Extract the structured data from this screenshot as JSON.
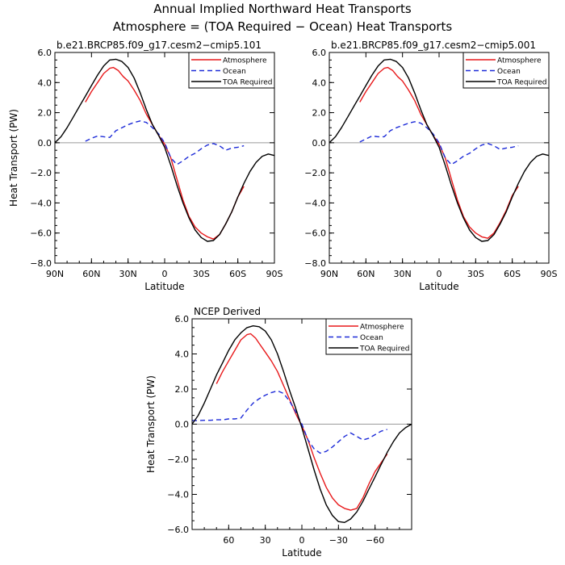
{
  "figure": {
    "title_line1": "Annual Implied Northward Heat Transports",
    "title_line2": "Atmosphere = (TOA Required − Ocean) Heat Transports"
  },
  "legend_entries": [
    "Atmosphere",
    "Ocean",
    "TOA Required"
  ],
  "colors": {
    "atmosphere": "#e8191b",
    "ocean": "#1d2bd8",
    "toa": "#000000",
    "zero_line": "#9a9a9a"
  },
  "chart_data": [
    {
      "type": "line",
      "title": "b.e21.BRCP85.f09_g17.cesm2−cmip5.101",
      "xlabel": "Latitude",
      "ylabel": "Heat Transport (PW)",
      "xlim": [
        90,
        -90
      ],
      "ylim": [
        -8,
        6
      ],
      "xticks": [
        90,
        60,
        30,
        0,
        -30,
        -60,
        -90
      ],
      "xtick_labels": [
        "90N",
        "60N",
        "30N",
        "0",
        "30S",
        "60S",
        "90S"
      ],
      "yticks": [
        6,
        4,
        2,
        0,
        -2,
        -4,
        -6,
        -8
      ],
      "ytick_labels": [
        "6.0",
        "4.0",
        "2.0",
        "0.0",
        "−2.0",
        "−4.0",
        "−6.0",
        "−8.0"
      ],
      "series": [
        {
          "name": "Atmosphere",
          "x": [
            65,
            60,
            55,
            50,
            45,
            42,
            38,
            34,
            30,
            25,
            20,
            15,
            10,
            5,
            0,
            -5,
            -10,
            -15,
            -20,
            -25,
            -30,
            -35,
            -40,
            -45,
            -50,
            -55,
            -60,
            -65
          ],
          "y": [
            2.7,
            3.4,
            4.0,
            4.6,
            4.95,
            5.0,
            4.8,
            4.4,
            4.1,
            3.5,
            2.8,
            1.9,
            1.2,
            0.5,
            -0.1,
            -1.0,
            -2.4,
            -3.8,
            -4.9,
            -5.6,
            -6.0,
            -6.25,
            -6.4,
            -6.1,
            -5.4,
            -4.6,
            -3.6,
            -2.9
          ]
        },
        {
          "name": "Ocean",
          "x": [
            65,
            60,
            55,
            50,
            45,
            40,
            35,
            30,
            25,
            20,
            15,
            10,
            5,
            0,
            -5,
            -10,
            -15,
            -20,
            -25,
            -30,
            -35,
            -40,
            -45,
            -50,
            -55,
            -60,
            -65
          ],
          "y": [
            0.1,
            0.3,
            0.45,
            0.4,
            0.35,
            0.8,
            1.0,
            1.2,
            1.35,
            1.45,
            1.35,
            1.0,
            0.6,
            0.0,
            -1.0,
            -1.45,
            -1.2,
            -0.9,
            -0.7,
            -0.4,
            -0.15,
            -0.05,
            -0.2,
            -0.5,
            -0.35,
            -0.3,
            -0.2
          ]
        },
        {
          "name": "TOA Required",
          "x": [
            90,
            85,
            80,
            75,
            70,
            65,
            60,
            55,
            50,
            45,
            40,
            35,
            30,
            25,
            20,
            15,
            10,
            5,
            0,
            -5,
            -10,
            -15,
            -20,
            -25,
            -30,
            -35,
            -40,
            -45,
            -50,
            -55,
            -60,
            -65,
            -70,
            -75,
            -80,
            -85,
            -90
          ],
          "y": [
            0.0,
            0.4,
            1.0,
            1.7,
            2.4,
            3.1,
            3.8,
            4.5,
            5.1,
            5.5,
            5.55,
            5.4,
            5.0,
            4.3,
            3.3,
            2.2,
            1.2,
            0.5,
            -0.3,
            -1.5,
            -2.8,
            -4.0,
            -5.0,
            -5.8,
            -6.3,
            -6.55,
            -6.5,
            -6.1,
            -5.4,
            -4.6,
            -3.6,
            -2.7,
            -1.9,
            -1.3,
            -0.9,
            -0.75,
            -0.85
          ]
        }
      ]
    },
    {
      "type": "line",
      "title": "b.e21.BRCP85.f09_g17.cesm2−cmip5.001",
      "xlabel": "Latitude",
      "ylabel": "",
      "xlim": [
        90,
        -90
      ],
      "ylim": [
        -8,
        6
      ],
      "xticks": [
        90,
        60,
        30,
        0,
        -30,
        -60,
        -90
      ],
      "xtick_labels": [
        "90N",
        "60N",
        "30N",
        "0",
        "30S",
        "60S",
        "90S"
      ],
      "yticks": [
        6,
        4,
        2,
        0,
        -2,
        -4,
        -6,
        -8
      ],
      "ytick_labels": [
        "6.0",
        "4.0",
        "2.0",
        "0.0",
        "−2.0",
        "−4.0",
        "−6.0",
        "−8.0"
      ],
      "series": [
        {
          "name": "Atmosphere",
          "x": [
            65,
            60,
            55,
            50,
            45,
            42,
            38,
            34,
            30,
            25,
            20,
            15,
            10,
            5,
            0,
            -5,
            -10,
            -15,
            -20,
            -25,
            -30,
            -35,
            -40,
            -45,
            -50,
            -55,
            -60,
            -65
          ],
          "y": [
            2.7,
            3.4,
            4.0,
            4.6,
            4.95,
            5.0,
            4.8,
            4.4,
            4.1,
            3.5,
            2.8,
            1.9,
            1.2,
            0.5,
            -0.1,
            -1.0,
            -2.4,
            -3.8,
            -4.9,
            -5.6,
            -6.0,
            -6.25,
            -6.35,
            -6.0,
            -5.3,
            -4.5,
            -3.5,
            -2.9
          ]
        },
        {
          "name": "Ocean",
          "x": [
            65,
            60,
            55,
            50,
            45,
            40,
            35,
            30,
            25,
            20,
            15,
            10,
            5,
            0,
            -5,
            -10,
            -15,
            -20,
            -25,
            -30,
            -35,
            -40,
            -45,
            -50,
            -55,
            -60,
            -65
          ],
          "y": [
            0.05,
            0.25,
            0.45,
            0.4,
            0.4,
            0.8,
            1.0,
            1.15,
            1.3,
            1.4,
            1.3,
            1.0,
            0.6,
            0.0,
            -1.0,
            -1.45,
            -1.2,
            -0.9,
            -0.7,
            -0.4,
            -0.15,
            -0.05,
            -0.2,
            -0.45,
            -0.35,
            -0.3,
            -0.2
          ]
        },
        {
          "name": "TOA Required",
          "x": [
            90,
            85,
            80,
            75,
            70,
            65,
            60,
            55,
            50,
            45,
            40,
            35,
            30,
            25,
            20,
            15,
            10,
            5,
            0,
            -5,
            -10,
            -15,
            -20,
            -25,
            -30,
            -35,
            -40,
            -45,
            -50,
            -55,
            -60,
            -65,
            -70,
            -75,
            -80,
            -85,
            -90
          ],
          "y": [
            0.0,
            0.4,
            1.0,
            1.7,
            2.4,
            3.1,
            3.8,
            4.5,
            5.1,
            5.5,
            5.55,
            5.4,
            5.0,
            4.3,
            3.3,
            2.2,
            1.2,
            0.5,
            -0.3,
            -1.5,
            -2.8,
            -4.0,
            -5.0,
            -5.8,
            -6.3,
            -6.55,
            -6.5,
            -6.1,
            -5.4,
            -4.6,
            -3.6,
            -2.7,
            -1.9,
            -1.3,
            -0.9,
            -0.75,
            -0.85
          ]
        }
      ]
    },
    {
      "type": "line",
      "title": "NCEP Derived",
      "xlabel": "Latitude",
      "ylabel": "Heat Transport (PW)",
      "xlim": [
        90,
        -90
      ],
      "ylim": [
        -6,
        6
      ],
      "xticks": [
        60,
        30,
        0,
        -30,
        -60
      ],
      "xtick_labels": [
        "60",
        "30",
        "0",
        "−30",
        "−60"
      ],
      "yticks": [
        6,
        4,
        2,
        0,
        -2,
        -4,
        -6
      ],
      "ytick_labels": [
        "6.0",
        "4.0",
        "2.0",
        "0.0",
        "−2.0",
        "−4.0",
        "−6.0"
      ],
      "series": [
        {
          "name": "Atmosphere",
          "x": [
            70,
            65,
            60,
            55,
            50,
            45,
            42,
            38,
            34,
            30,
            25,
            20,
            15,
            10,
            5,
            0,
            -5,
            -10,
            -15,
            -20,
            -25,
            -30,
            -35,
            -40,
            -45,
            -50,
            -55,
            -60,
            -65,
            -70
          ],
          "y": [
            2.3,
            3.0,
            3.6,
            4.2,
            4.8,
            5.1,
            5.15,
            4.9,
            4.5,
            4.1,
            3.6,
            3.0,
            2.2,
            1.4,
            0.6,
            -0.1,
            -0.9,
            -1.9,
            -2.8,
            -3.6,
            -4.2,
            -4.6,
            -4.8,
            -4.9,
            -4.8,
            -4.2,
            -3.4,
            -2.7,
            -2.2,
            -1.7
          ]
        },
        {
          "name": "Ocean",
          "x": [
            90,
            85,
            80,
            75,
            70,
            65,
            60,
            55,
            50,
            45,
            40,
            35,
            30,
            25,
            20,
            15,
            10,
            5,
            0,
            -5,
            -10,
            -15,
            -20,
            -25,
            -30,
            -35,
            -40,
            -45,
            -50,
            -55,
            -60,
            -65,
            -70
          ],
          "y": [
            0.2,
            0.2,
            0.22,
            0.22,
            0.25,
            0.25,
            0.3,
            0.3,
            0.35,
            0.8,
            1.2,
            1.45,
            1.65,
            1.8,
            1.9,
            1.75,
            1.3,
            0.7,
            0.0,
            -0.9,
            -1.4,
            -1.65,
            -1.55,
            -1.3,
            -1.0,
            -0.7,
            -0.5,
            -0.7,
            -0.9,
            -0.8,
            -0.6,
            -0.4,
            -0.3
          ]
        },
        {
          "name": "TOA Required",
          "x": [
            90,
            85,
            80,
            75,
            70,
            65,
            60,
            55,
            50,
            45,
            40,
            35,
            30,
            25,
            20,
            15,
            10,
            5,
            0,
            -5,
            -10,
            -15,
            -20,
            -25,
            -30,
            -35,
            -40,
            -45,
            -50,
            -55,
            -60,
            -65,
            -70,
            -75,
            -80,
            -85,
            -90
          ],
          "y": [
            0.0,
            0.5,
            1.2,
            2.0,
            2.8,
            3.5,
            4.2,
            4.8,
            5.2,
            5.5,
            5.6,
            5.55,
            5.3,
            4.8,
            4.0,
            3.0,
            1.9,
            0.9,
            -0.2,
            -1.4,
            -2.6,
            -3.7,
            -4.6,
            -5.2,
            -5.55,
            -5.6,
            -5.4,
            -5.0,
            -4.4,
            -3.7,
            -3.0,
            -2.3,
            -1.6,
            -1.0,
            -0.5,
            -0.2,
            0.0
          ]
        }
      ]
    }
  ]
}
